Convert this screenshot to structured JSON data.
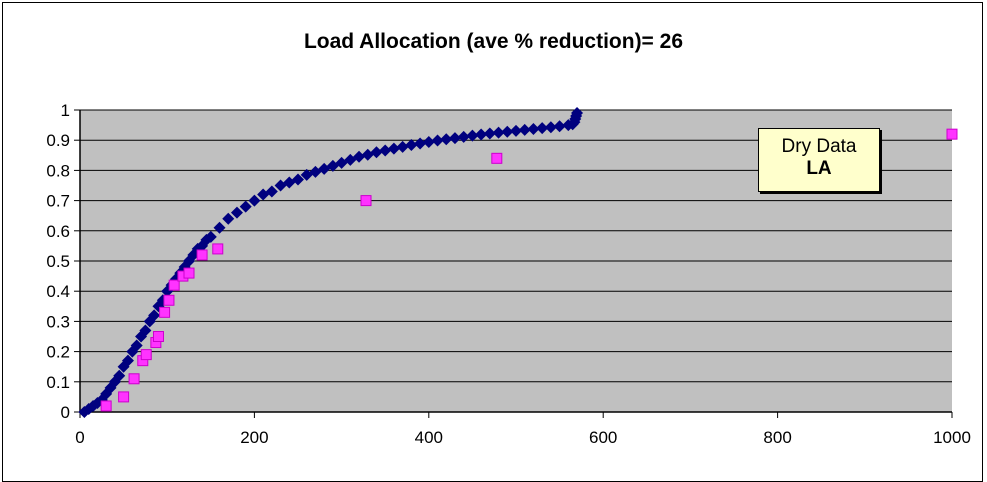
{
  "chart_data": {
    "type": "scatter",
    "title": "Load Allocation (ave % reduction)= 26",
    "xlabel": "",
    "ylabel": "",
    "xlim": [
      0,
      1000
    ],
    "ylim": [
      0,
      1
    ],
    "x_ticks": [
      "0",
      "200",
      "400",
      "600",
      "800",
      "1000"
    ],
    "y_ticks": [
      "0",
      "0.1",
      "0.2",
      "0.3",
      "0.4",
      "0.5",
      "0.6",
      "0.7",
      "0.8",
      "0.9",
      "1"
    ],
    "grid": "horizontal",
    "plot_background": "#c0c0c0",
    "annotation": {
      "line1": "Dry Data",
      "line2": "LA",
      "background": "#ffffcc"
    },
    "series": [
      {
        "marker": "diamond",
        "color": "#00007f",
        "x": [
          5,
          10,
          15,
          20,
          25,
          30,
          35,
          40,
          45,
          50,
          55,
          60,
          65,
          70,
          75,
          80,
          85,
          90,
          95,
          100,
          105,
          110,
          115,
          120,
          125,
          130,
          135,
          140,
          145,
          150,
          160,
          170,
          180,
          190,
          200,
          210,
          220,
          230,
          240,
          250,
          260,
          270,
          280,
          290,
          300,
          310,
          320,
          330,
          340,
          350,
          360,
          370,
          380,
          390,
          400,
          410,
          420,
          430,
          440,
          450,
          460,
          470,
          480,
          490,
          500,
          510,
          520,
          530,
          540,
          550,
          560,
          565,
          567,
          568,
          569,
          570
        ],
        "values": [
          0.0,
          0.01,
          0.02,
          0.03,
          0.04,
          0.06,
          0.08,
          0.1,
          0.12,
          0.15,
          0.17,
          0.2,
          0.22,
          0.25,
          0.27,
          0.3,
          0.32,
          0.35,
          0.37,
          0.4,
          0.42,
          0.44,
          0.46,
          0.48,
          0.5,
          0.52,
          0.54,
          0.55,
          0.57,
          0.58,
          0.61,
          0.64,
          0.66,
          0.68,
          0.7,
          0.72,
          0.73,
          0.75,
          0.76,
          0.77,
          0.785,
          0.795,
          0.805,
          0.815,
          0.825,
          0.835,
          0.845,
          0.852,
          0.86,
          0.866,
          0.872,
          0.878,
          0.884,
          0.889,
          0.894,
          0.899,
          0.903,
          0.907,
          0.911,
          0.915,
          0.919,
          0.922,
          0.925,
          0.928,
          0.931,
          0.934,
          0.937,
          0.94,
          0.943,
          0.946,
          0.95,
          0.953,
          0.96,
          0.97,
          0.98,
          0.99
        ]
      },
      {
        "marker": "square",
        "color": "#ff33ff",
        "x": [
          30,
          50,
          62,
          72,
          76,
          87,
          90,
          97,
          102,
          108,
          118,
          125,
          140,
          158,
          328,
          478,
          1000
        ],
        "values": [
          0.02,
          0.05,
          0.11,
          0.17,
          0.19,
          0.23,
          0.25,
          0.33,
          0.37,
          0.42,
          0.45,
          0.46,
          0.52,
          0.54,
          0.7,
          0.84,
          0.92
        ]
      }
    ]
  }
}
